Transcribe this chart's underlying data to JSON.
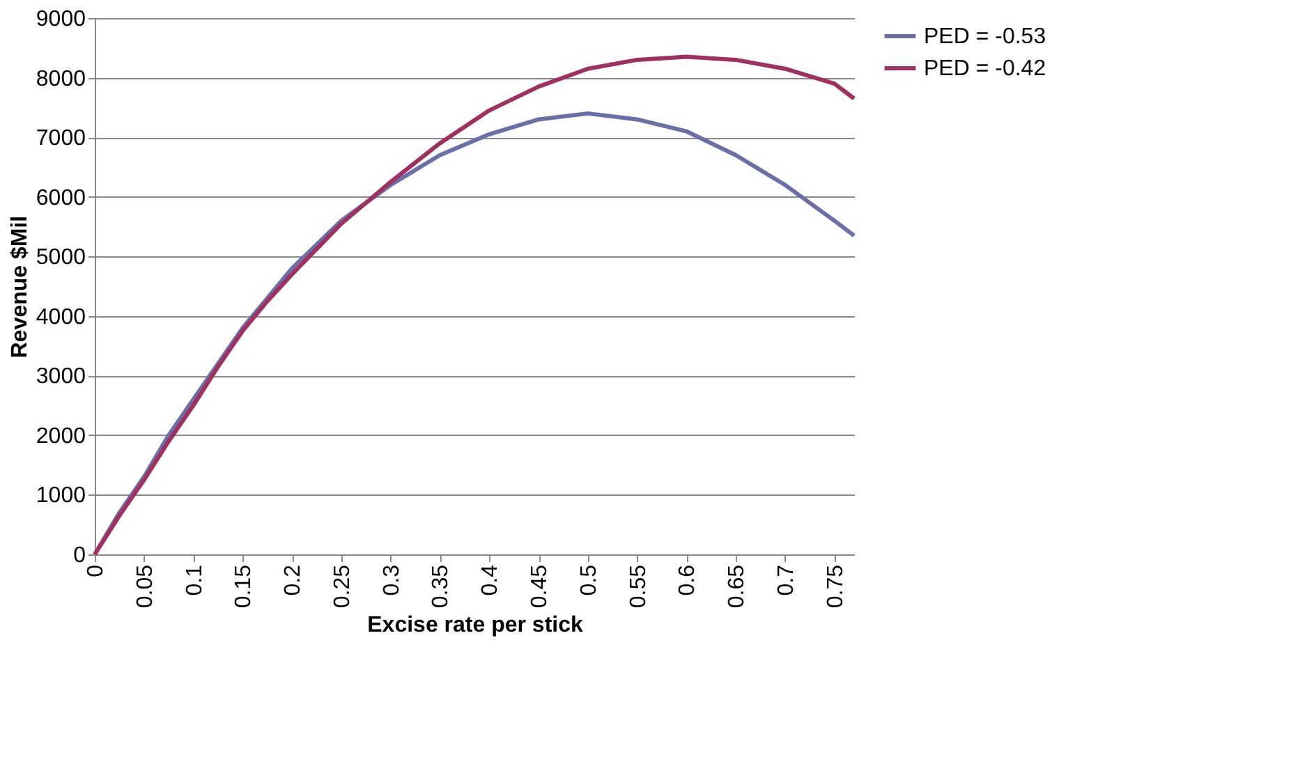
{
  "chart_data": {
    "type": "line",
    "xlabel": "Excise rate per stick",
    "ylabel": "Revenue $Mil",
    "xlim": [
      0,
      0.77
    ],
    "xticks": [
      0,
      0.05,
      0.1,
      0.15,
      0.2,
      0.25,
      0.3,
      0.35,
      0.4,
      0.45,
      0.5,
      0.55,
      0.6,
      0.65,
      0.7,
      0.75
    ],
    "ylim": [
      0,
      9000
    ],
    "yticks": [
      0,
      1000,
      2000,
      3000,
      4000,
      5000,
      6000,
      7000,
      8000,
      9000
    ],
    "grid": "y",
    "legend": "right",
    "marker": "none",
    "line_style": "solid",
    "x": [
      0,
      0.025,
      0.05,
      0.075,
      0.1,
      0.125,
      0.15,
      0.175,
      0.2,
      0.25,
      0.3,
      0.35,
      0.4,
      0.45,
      0.5,
      0.55,
      0.6,
      0.65,
      0.7,
      0.75,
      0.77
    ],
    "series": [
      {
        "name": "PED = -0.53",
        "color": "#6a6fa8",
        "values": [
          0,
          700,
          1300,
          2000,
          2600,
          3200,
          3800,
          4300,
          4800,
          5600,
          6200,
          6700,
          7050,
          7300,
          7400,
          7300,
          7100,
          6700,
          6200,
          5600,
          5350
        ]
      },
      {
        "name": "PED = -0.42",
        "color": "#a0305f",
        "values": [
          0,
          650,
          1250,
          1900,
          2500,
          3150,
          3750,
          4250,
          4700,
          5550,
          6250,
          6900,
          7450,
          7850,
          8150,
          8300,
          8350,
          8300,
          8150,
          7900,
          7650
        ]
      }
    ]
  }
}
